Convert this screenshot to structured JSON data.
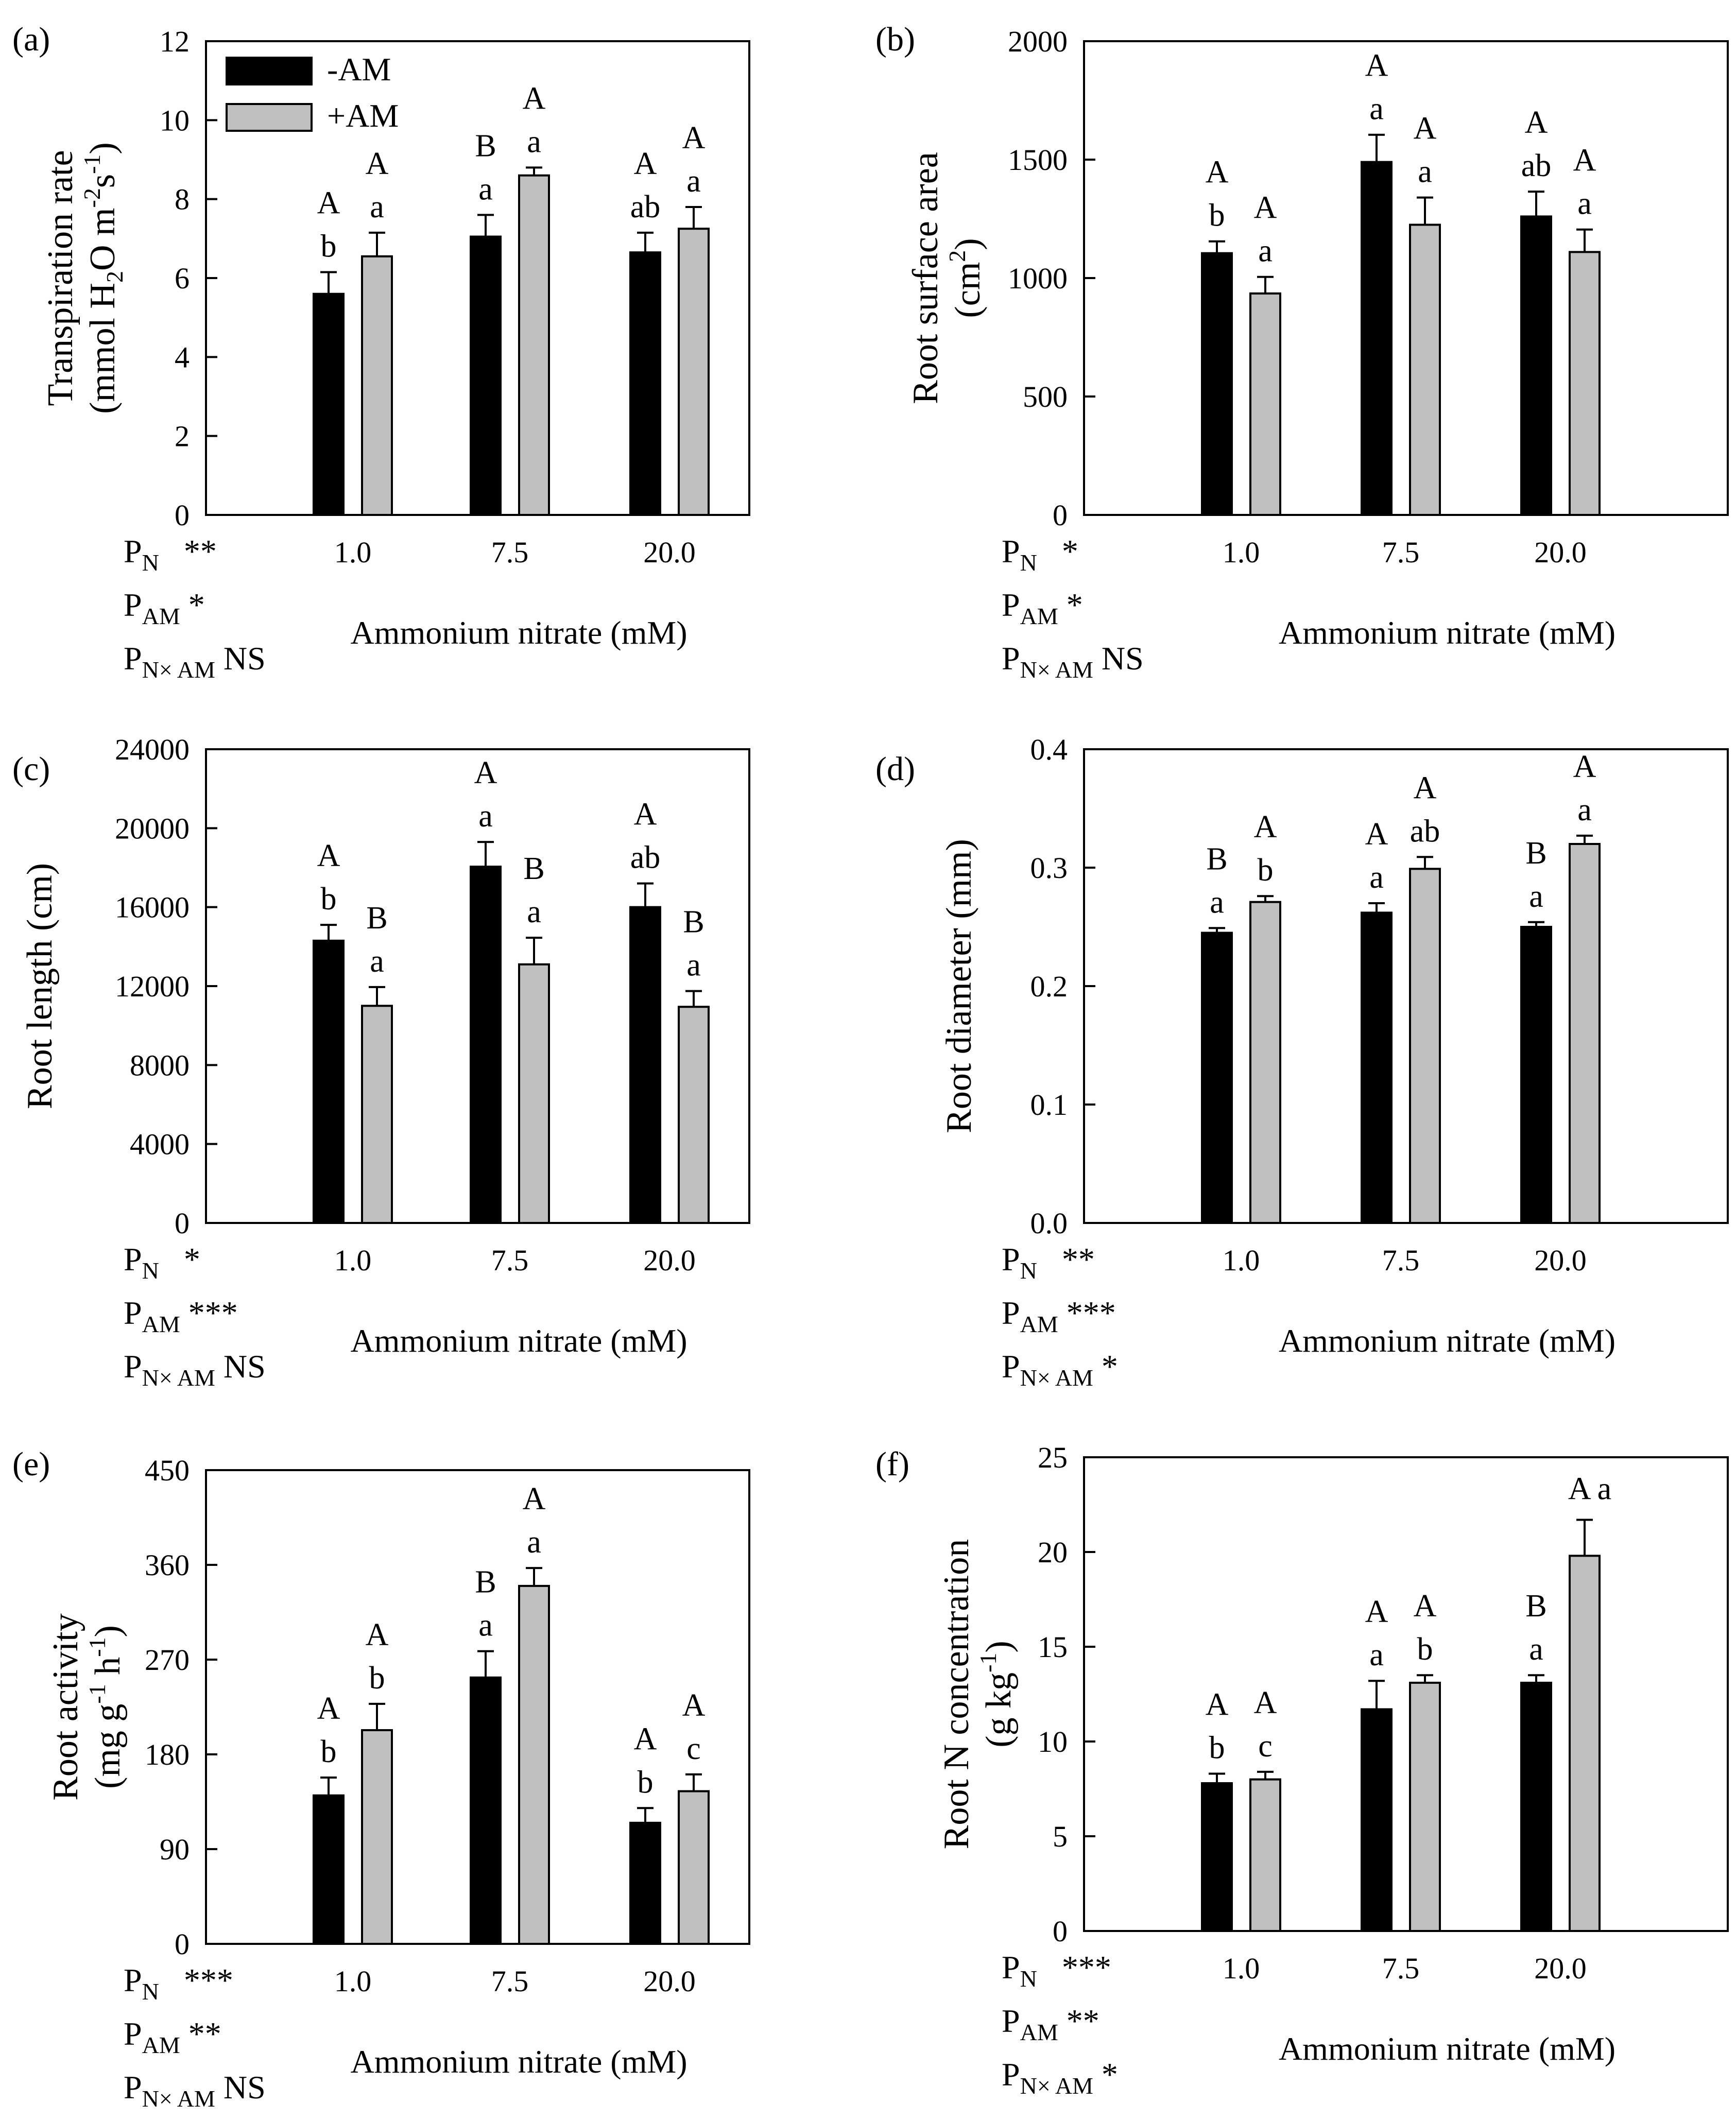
{
  "figure": {
    "legend": [
      "-AM",
      "+AM"
    ],
    "xlabel": "Ammonium nitrate (mM)",
    "colors": {
      "minus_am": "#000000",
      "plus_am": "#c0c0c0",
      "axis": "#000000"
    }
  },
  "chart_data": [
    {
      "id": "a",
      "panel_label": "(a)",
      "type": "bar",
      "ylabel_main": "Transpiration rate",
      "ylabel_unit": {
        "line": "(mmol H",
        "sub1": "2",
        "mid": "O m",
        "sup1": "-2",
        "mid2": "s",
        "sup2": "-1",
        "end": ")"
      },
      "xlabel": "Ammonium nitrate (mM)",
      "categories": [
        "1.0",
        "7.5",
        "20.0"
      ],
      "ylim": [
        0,
        12
      ],
      "yticks": [
        "0",
        "2",
        "4",
        "6",
        "8",
        "10",
        "12"
      ],
      "series": [
        {
          "name": "-AM",
          "values": [
            5.6,
            7.05,
            6.65
          ],
          "errors": [
            0.55,
            0.55,
            0.5
          ]
        },
        {
          "name": "+AM",
          "values": [
            6.55,
            8.6,
            7.25
          ],
          "errors": [
            0.6,
            0.2,
            0.55
          ]
        }
      ],
      "letters_upper": [
        [
          "A",
          "B",
          "A"
        ],
        [
          "A",
          "A",
          "A"
        ]
      ],
      "letters_lower": [
        [
          "b",
          "a",
          "ab"
        ],
        [
          "a",
          "a",
          "a"
        ]
      ],
      "stats": {
        "PN": "**",
        "PAM": "*",
        "PNxAM": "NS"
      }
    },
    {
      "id": "b",
      "panel_label": "(b)",
      "type": "bar",
      "ylabel_main": "Root surface area",
      "ylabel_unit": {
        "line": "(cm",
        "sup1": "2",
        "end": ")"
      },
      "xlabel": "Ammonium nitrate (mM)",
      "categories": [
        "1.0",
        "7.5",
        "20.0"
      ],
      "ylim": [
        0,
        2000
      ],
      "yticks": [
        "0",
        "500",
        "1000",
        "1500",
        "2000"
      ],
      "series": [
        {
          "name": "-AM",
          "values": [
            1105,
            1490,
            1260
          ],
          "errors": [
            50,
            115,
            105
          ]
        },
        {
          "name": "+AM",
          "values": [
            935,
            1225,
            1110
          ],
          "errors": [
            70,
            115,
            95
          ]
        }
      ],
      "letters_upper": [
        [
          "A",
          "A",
          "A"
        ],
        [
          "A",
          "A",
          "A"
        ]
      ],
      "letters_lower": [
        [
          "b",
          "a",
          "ab"
        ],
        [
          "a",
          "a",
          "a"
        ]
      ],
      "stats": {
        "PN": "*",
        "PAM": "*",
        "PNxAM": "NS"
      }
    },
    {
      "id": "c",
      "panel_label": "(c)",
      "type": "bar",
      "ylabel_main": "Root length (cm)",
      "xlabel": "Ammonium nitrate (mM)",
      "categories": [
        "1.0",
        "7.5",
        "20.0"
      ],
      "ylim": [
        0,
        24000
      ],
      "yticks": [
        "0",
        "4000",
        "8000",
        "12000",
        "16000",
        "20000",
        "24000"
      ],
      "series": [
        {
          "name": "-AM",
          "values": [
            14300,
            18050,
            16000
          ],
          "errors": [
            800,
            1250,
            1200
          ]
        },
        {
          "name": "+AM",
          "values": [
            11000,
            13100,
            10950
          ],
          "errors": [
            950,
            1350,
            800
          ]
        }
      ],
      "letters_upper": [
        [
          "A",
          "A",
          "A"
        ],
        [
          "B",
          "B",
          "B"
        ]
      ],
      "letters_lower": [
        [
          "b",
          "a",
          "ab"
        ],
        [
          "a",
          "a",
          "a"
        ]
      ],
      "stats": {
        "PN": "*",
        "PAM": "***",
        "PNxAM": "NS"
      }
    },
    {
      "id": "d",
      "panel_label": "(d)",
      "type": "bar",
      "ylabel_main": "Root diameter (mm)",
      "xlabel": "Ammonium nitrate (mM)",
      "categories": [
        "1.0",
        "7.5",
        "20.0"
      ],
      "ylim": [
        0,
        0.4
      ],
      "yticks": [
        "0.0",
        "0.1",
        "0.2",
        "0.3",
        "0.4"
      ],
      "series": [
        {
          "name": "-AM",
          "values": [
            0.245,
            0.262,
            0.25
          ],
          "errors": [
            0.004,
            0.008,
            0.004
          ]
        },
        {
          "name": "+AM",
          "values": [
            0.271,
            0.299,
            0.32
          ],
          "errors": [
            0.005,
            0.01,
            0.007
          ]
        }
      ],
      "letters_upper": [
        [
          "B",
          "A",
          "B"
        ],
        [
          "A",
          "A",
          "A"
        ]
      ],
      "letters_lower": [
        [
          "a",
          "a",
          "a"
        ],
        [
          "b",
          "ab",
          "a"
        ]
      ],
      "stats": {
        "PN": "**",
        "PAM": "***",
        "PNxAM": "*"
      }
    },
    {
      "id": "e",
      "panel_label": "(e)",
      "type": "bar",
      "ylabel_main": "Root activity",
      "ylabel_unit": {
        "line": "(mg g",
        "sup1": "-1",
        "mid": " h",
        "sup2": "-1",
        "end": ")"
      },
      "xlabel": "Ammonium nitrate (mM)",
      "categories": [
        "1.0",
        "7.5",
        "20.0"
      ],
      "ylim": [
        0,
        450
      ],
      "yticks": [
        "0",
        "90",
        "180",
        "270",
        "360",
        "450"
      ],
      "series": [
        {
          "name": "-AM",
          "values": [
            141,
            253,
            115
          ],
          "errors": [
            17,
            25,
            14
          ]
        },
        {
          "name": "+AM",
          "values": [
            203,
            340,
            145
          ],
          "errors": [
            25,
            17,
            16
          ]
        }
      ],
      "letters_upper": [
        [
          "A",
          "B",
          "A"
        ],
        [
          "A",
          "A",
          "A"
        ]
      ],
      "letters_lower": [
        [
          "b",
          "a",
          "b"
        ],
        [
          "b",
          "a",
          "c"
        ]
      ],
      "stats": {
        "PN": "***",
        "PAM": "**",
        "PNxAM": "NS"
      }
    },
    {
      "id": "f",
      "panel_label": "(f)",
      "type": "bar",
      "ylabel_main": "Root N concentration",
      "ylabel_unit": {
        "line": "(g kg",
        "sup1": "-1",
        "end": ")"
      },
      "xlabel": "Ammonium nitrate (mM)",
      "categories": [
        "1.0",
        "7.5",
        "20.0"
      ],
      "ylim": [
        0,
        25
      ],
      "yticks": [
        "0",
        "5",
        "10",
        "15",
        "20",
        "25"
      ],
      "series": [
        {
          "name": "-AM",
          "values": [
            7.8,
            11.7,
            13.1
          ],
          "errors": [
            0.5,
            1.5,
            0.4
          ]
        },
        {
          "name": "+AM",
          "values": [
            8.0,
            13.1,
            19.8
          ],
          "errors": [
            0.4,
            0.4,
            1.9
          ]
        }
      ],
      "letters_upper": [
        [
          "A",
          "A",
          "B"
        ],
        [
          "A",
          "A",
          "A"
        ]
      ],
      "letters_lower": [
        [
          "b",
          "a",
          "a"
        ],
        [
          "c",
          "b",
          "a"
        ]
      ],
      "stats": {
        "PN": "***",
        "PAM": "**",
        "PNxAM": "*"
      }
    }
  ]
}
